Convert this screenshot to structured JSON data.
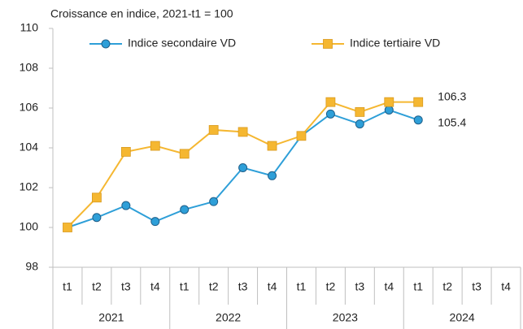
{
  "chart_data": {
    "type": "line",
    "title": "Croissance en indice,  2021-t1 = 100",
    "categories": [
      "t1",
      "t2",
      "t3",
      "t4",
      "t1",
      "t2",
      "t3",
      "t4",
      "t1",
      "t2",
      "t3",
      "t4",
      "t1",
      "t2",
      "t3",
      "t4"
    ],
    "year_groups": [
      "2021",
      "2022",
      "2023",
      "2024"
    ],
    "series": [
      {
        "name": "Indice secondaire VD",
        "color": "#2e9fd8",
        "marker": "circle",
        "values": [
          100,
          100.5,
          101.1,
          100.3,
          100.9,
          101.3,
          103.0,
          102.6,
          104.6,
          105.7,
          105.2,
          105.9,
          105.4,
          null,
          null,
          null
        ]
      },
      {
        "name": "Indice tertiaire VD",
        "color": "#f5b731",
        "marker": "square",
        "values": [
          100,
          101.5,
          103.8,
          104.1,
          103.7,
          104.9,
          104.8,
          104.1,
          104.6,
          106.3,
          105.8,
          106.3,
          106.3,
          null,
          null,
          null
        ]
      }
    ],
    "ylim": [
      98,
      110
    ],
    "yticks": [
      98,
      100,
      102,
      104,
      106,
      108,
      110
    ],
    "grid": false
  }
}
